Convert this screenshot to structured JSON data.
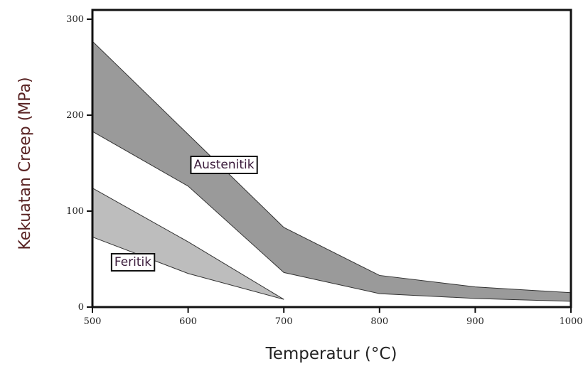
{
  "chart_data": {
    "type": "band",
    "xlabel": "Temperatur (°C)",
    "ylabel": "Kekuatan Creep (MPa)",
    "xlim": [
      500,
      1000
    ],
    "ylim": [
      0,
      300
    ],
    "xticks": [
      500,
      600,
      700,
      800,
      900,
      1000
    ],
    "yticks": [
      0,
      100,
      200,
      300
    ],
    "series": [
      {
        "name": "Austenitik",
        "color": "#9a9a9a",
        "x": [
          500,
          600,
          700,
          800,
          900,
          1000
        ],
        "upper": [
          277,
          180,
          83,
          33,
          21,
          15
        ],
        "lower": [
          183,
          126,
          36,
          14,
          9,
          6
        ]
      },
      {
        "name": "Feritik",
        "color": "#bdbdbd",
        "x": [
          500,
          600,
          700
        ],
        "upper": [
          124,
          68,
          8
        ],
        "lower": [
          73,
          35,
          8
        ]
      }
    ]
  }
}
